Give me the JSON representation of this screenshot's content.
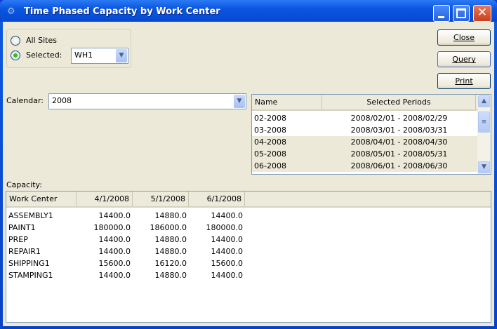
{
  "window": {
    "title": "Time Phased Capacity by Work Center",
    "icon": "app-icon",
    "controls": [
      "minimize",
      "maximize",
      "close"
    ]
  },
  "sites": {
    "all_label": "All Sites",
    "selected_label": "Selected:",
    "selected": "selected",
    "site_value": "WH1"
  },
  "buttons": {
    "close": "Close",
    "query": "Query",
    "print": "Print"
  },
  "calendar": {
    "label": "Calendar:",
    "value": "2008"
  },
  "periods": {
    "columns": [
      "Name",
      "Selected Periods"
    ],
    "rows": [
      {
        "name": "02-2008",
        "range": "2008/02/01 - 2008/02/29",
        "selected": false
      },
      {
        "name": "03-2008",
        "range": "2008/03/01 - 2008/03/31",
        "selected": false
      },
      {
        "name": "04-2008",
        "range": "2008/04/01 - 2008/04/30",
        "selected": true
      },
      {
        "name": "05-2008",
        "range": "2008/05/01 - 2008/05/31",
        "selected": true
      },
      {
        "name": "06-2008",
        "range": "2008/06/01 - 2008/06/30",
        "selected": true
      }
    ]
  },
  "capacity": {
    "label": "Capacity:",
    "columns": [
      "Work Center",
      "4/1/2008",
      "5/1/2008",
      "6/1/2008"
    ],
    "rows": [
      [
        "ASSEMBLY1",
        "14400.0",
        "14880.0",
        "14400.0"
      ],
      [
        "PAINT1",
        "180000.0",
        "186000.0",
        "180000.0"
      ],
      [
        "PREP",
        "14400.0",
        "14880.0",
        "14400.0"
      ],
      [
        "REPAIR1",
        "14400.0",
        "14880.0",
        "14400.0"
      ],
      [
        "SHIPPING1",
        "15600.0",
        "16120.0",
        "15600.0"
      ],
      [
        "STAMPING1",
        "14400.0",
        "14880.0",
        "14400.0"
      ]
    ]
  },
  "colors": {
    "titlebar": "#0a56e0",
    "selection": "#ece9d8",
    "radio_on": "#2dbd2d"
  }
}
